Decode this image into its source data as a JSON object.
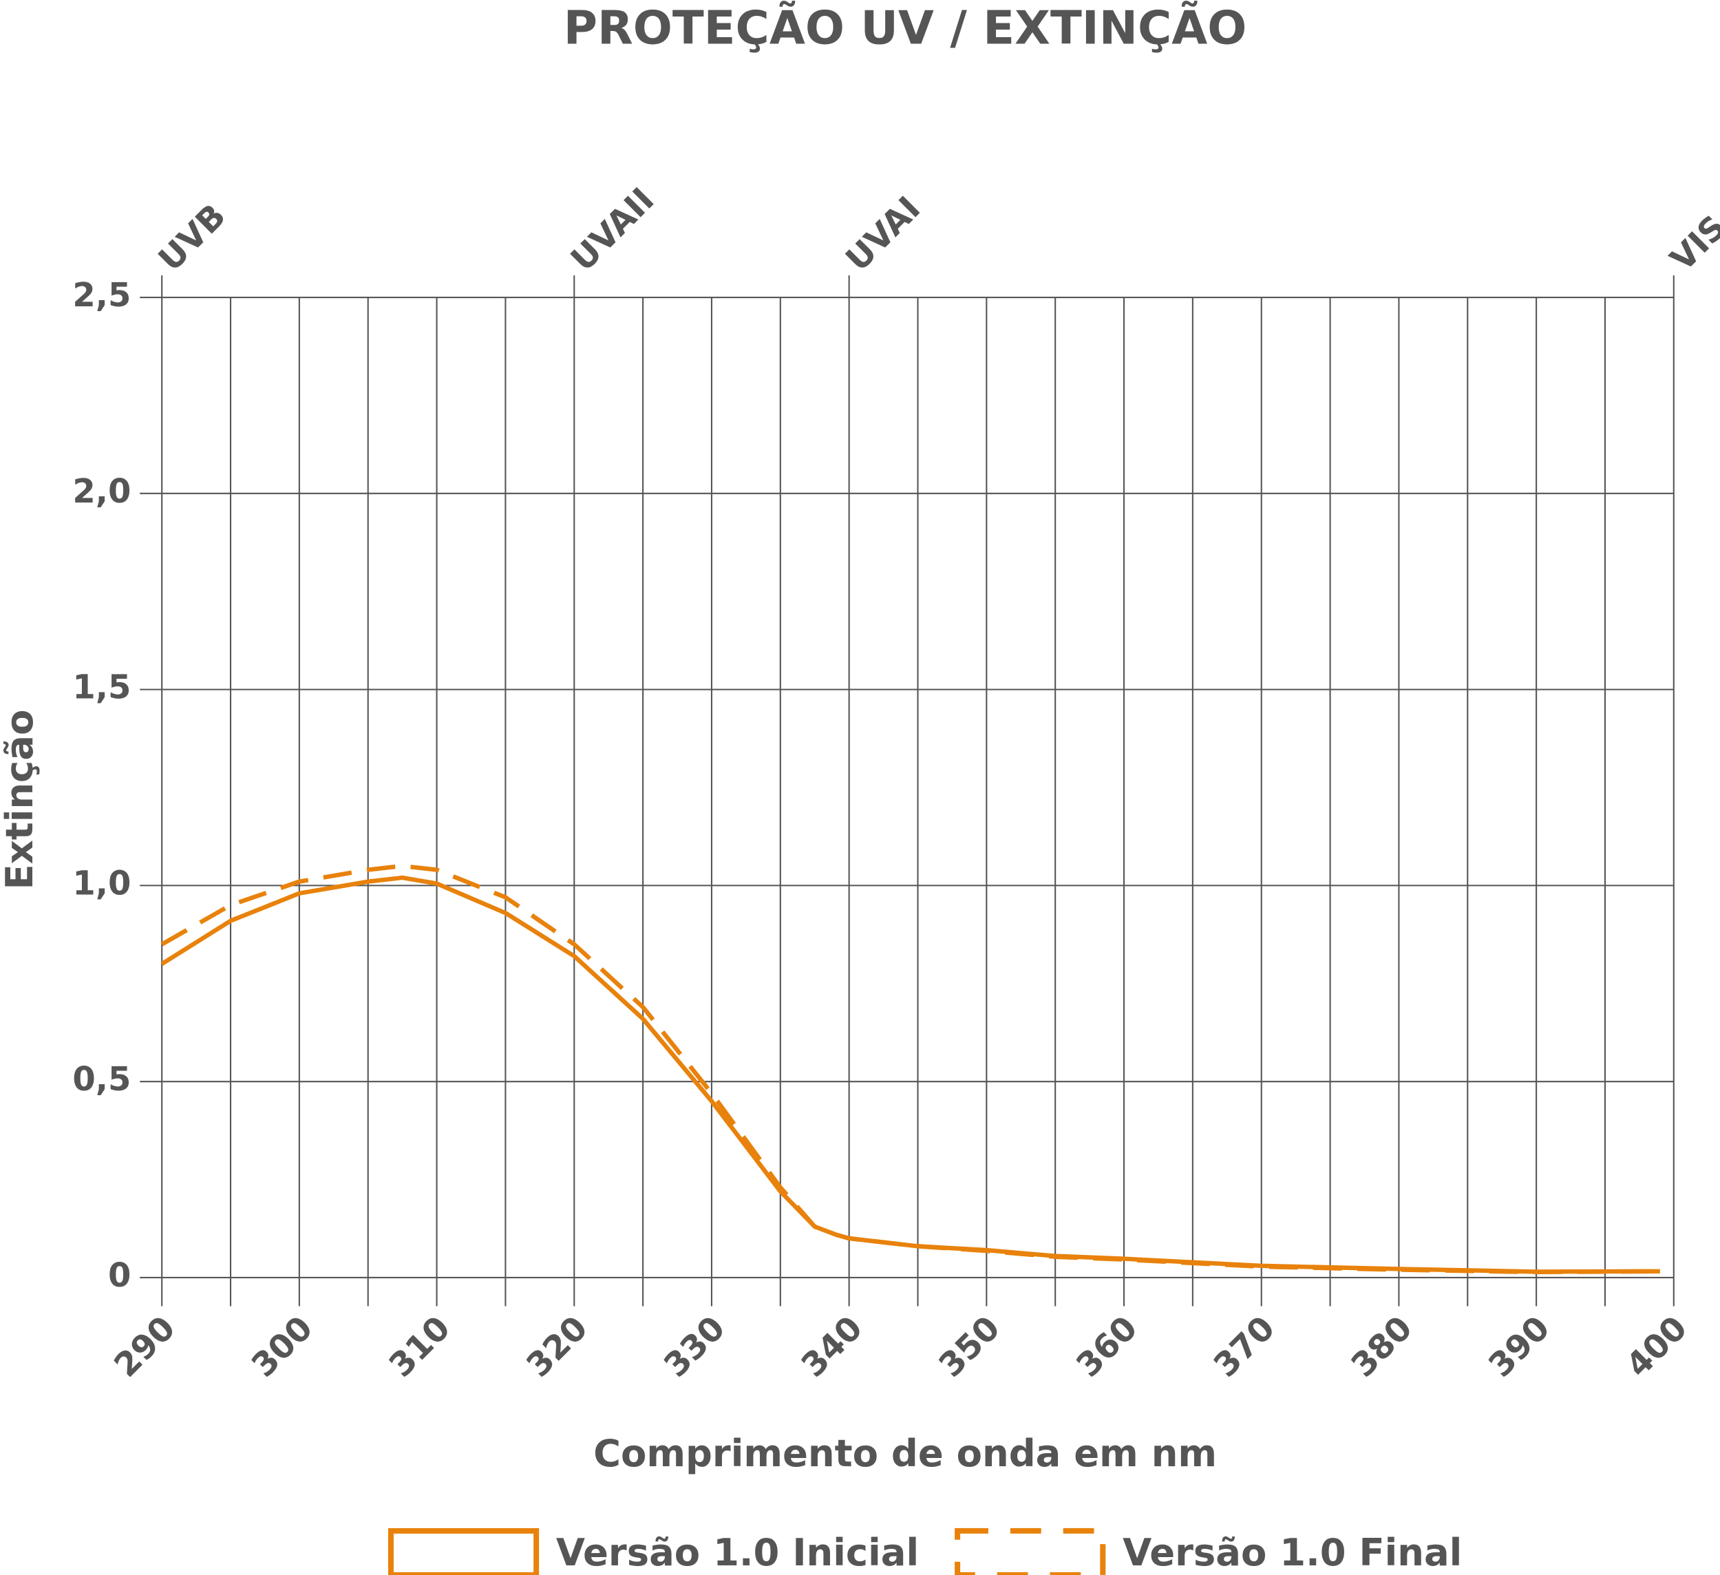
{
  "chart_data": {
    "type": "line",
    "title": "PROTEÇÃO UV / EXTINÇÃO",
    "xlabel": "Comprimento de onda em nm",
    "ylabel": "Extinção",
    "xlim": [
      290,
      400
    ],
    "xticks": [
      290,
      300,
      310,
      320,
      330,
      340,
      350,
      360,
      370,
      380,
      390,
      400
    ],
    "xminorticks": [
      295,
      305,
      315,
      325,
      335,
      345,
      355,
      365,
      375,
      385,
      395
    ],
    "ylim": [
      0,
      2.5
    ],
    "yticks": [
      0,
      {
        "value": 0.5,
        "label": "0,5"
      },
      {
        "value": 1,
        "label": "1,0"
      },
      {
        "value": 1.5,
        "label": "1,5"
      },
      {
        "value": 2,
        "label": "2,0"
      },
      {
        "value": 2.5,
        "label": "2,5"
      }
    ],
    "bands": [
      {
        "label": "UVB",
        "x": 290
      },
      {
        "label": "UVAII",
        "x": 320
      },
      {
        "label": "UVAI",
        "x": 340
      },
      {
        "label": "VIS",
        "x": 400
      }
    ],
    "grid": true,
    "x": [
      290,
      295,
      300,
      305,
      307.5,
      310,
      315,
      320,
      325,
      330,
      335,
      337.5,
      339,
      340,
      345,
      350,
      355,
      360,
      370,
      380,
      390,
      399
    ],
    "series": [
      {
        "name": "Versão 1.0 Inicial",
        "color": "#e8820c",
        "dash": false,
        "values": [
          0.8,
          0.91,
          0.98,
          1.01,
          1.02,
          1.005,
          0.93,
          0.82,
          0.66,
          0.45,
          0.22,
          0.13,
          0.11,
          0.1,
          0.08,
          0.07,
          0.055,
          0.048,
          0.03,
          0.022,
          0.015,
          0.016
        ]
      },
      {
        "name": "Versão 1.0 Final",
        "color": "#e8820c",
        "dash": true,
        "values": [
          0.85,
          0.95,
          1.01,
          1.04,
          1.05,
          1.04,
          0.97,
          0.85,
          0.69,
          0.47,
          0.23,
          0.13,
          0.11,
          0.1,
          0.08,
          0.068,
          0.053,
          0.046,
          0.028,
          0.02,
          0.014,
          0.016
        ]
      }
    ]
  }
}
